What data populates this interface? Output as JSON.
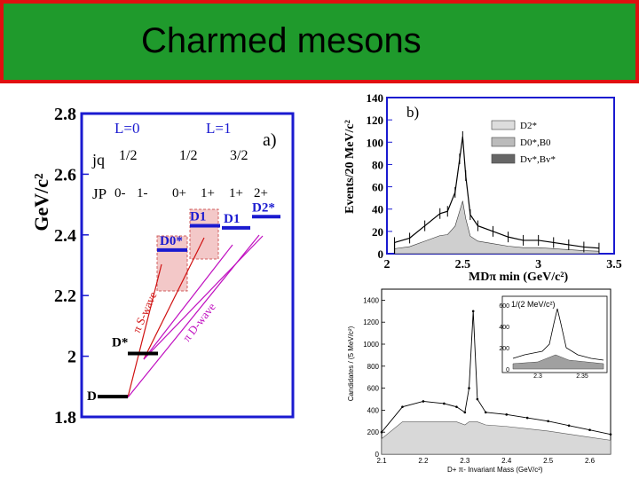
{
  "title": "Charmed mesons",
  "panel_a": {
    "ylabel": "GeV/c²",
    "yticks": [
      "1.8",
      "2",
      "2.2",
      "2.4",
      "2.6",
      "2.8"
    ],
    "label_L0": "L=0",
    "label_L1": "L=1",
    "label_a": "a)",
    "row_jq": "jq",
    "jq_values": [
      "1/2",
      "1/2",
      "3/2"
    ],
    "row_JP": "JP",
    "JP_values": [
      "0-",
      "1-",
      "0+",
      "1+",
      "1+",
      "2+"
    ],
    "states": [
      "D",
      "D*",
      "D0*",
      "D1",
      "D1",
      "D2*"
    ],
    "wave_labels": [
      "π S-wave",
      "π D-wave"
    ],
    "colors": {
      "frame": "#1a1ad0",
      "level": "#1a1ad0",
      "s_wave": "#d01010",
      "d_wave": "#c010c0",
      "band": "#d06060"
    },
    "levels_gev": [
      1.867,
      2.009,
      2.35,
      2.43,
      2.423,
      2.46
    ]
  },
  "panel_b": {
    "label_b": "b)",
    "ylabel": "Events/20 MeV/c²",
    "xlabel": "MDπ min (GeV/c²)",
    "yticks": [
      "0",
      "20",
      "40",
      "60",
      "80",
      "100",
      "120",
      "140"
    ],
    "xticks": [
      "2",
      "2.5",
      "3",
      "3.5"
    ],
    "legend": [
      "D2*",
      "D0*,B0",
      "Dv*,Bv*"
    ],
    "chart_data": {
      "type": "histogram",
      "x": [
        2.05,
        2.15,
        2.25,
        2.35,
        2.4,
        2.45,
        2.48,
        2.5,
        2.52,
        2.55,
        2.6,
        2.7,
        2.8,
        2.9,
        3.0,
        3.1,
        3.2,
        3.3,
        3.4
      ],
      "y": [
        10,
        14,
        25,
        36,
        38,
        55,
        85,
        105,
        70,
        35,
        25,
        20,
        15,
        12,
        12,
        10,
        8,
        6,
        5
      ],
      "xlim": [
        2.0,
        3.5
      ],
      "ylim": [
        0,
        140
      ]
    }
  },
  "panel_c": {
    "ylabel": "Candidates / (5 MeV/c²)",
    "xlabel": "D+ π- Invariant Mass (GeV/c²)",
    "yticks": [
      "0",
      "200",
      "400",
      "600",
      "800",
      "1000",
      "1200",
      "1400"
    ],
    "xticks": [
      "2.1",
      "2.2",
      "2.3",
      "2.4",
      "2.5",
      "2.6"
    ],
    "inset_label": "1/(2 MeV/c²)",
    "inset_yticks": [
      "0",
      "200",
      "400",
      "600"
    ],
    "inset_xticks": [
      "2.3",
      "2.35"
    ],
    "chart_data": {
      "type": "line",
      "x": [
        2.1,
        2.15,
        2.2,
        2.25,
        2.28,
        2.3,
        2.31,
        2.32,
        2.33,
        2.35,
        2.4,
        2.45,
        2.5,
        2.55,
        2.6,
        2.65
      ],
      "y": [
        200,
        430,
        480,
        460,
        430,
        380,
        600,
        1300,
        500,
        380,
        360,
        330,
        300,
        260,
        220,
        180
      ],
      "xlim": [
        2.1,
        2.65
      ],
      "ylim": [
        0,
        1500
      ]
    }
  }
}
